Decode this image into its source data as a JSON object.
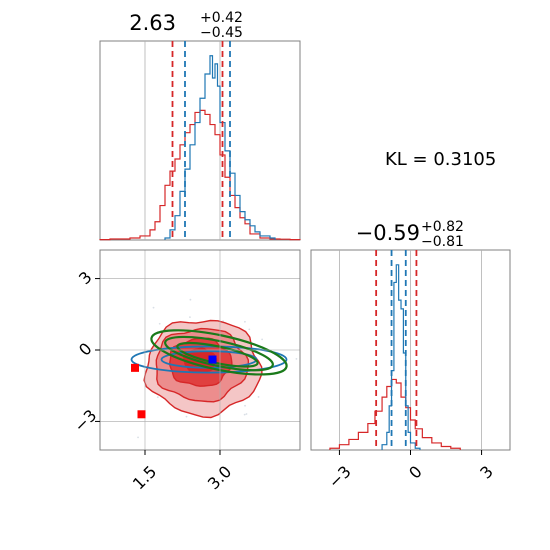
{
  "chart_data": [
    {
      "panel": "top-left",
      "type": "histogram",
      "title": {
        "main": "2.63",
        "sup": "+0.42",
        "sub": "−0.45"
      },
      "xlim": [
        0.6,
        4.6
      ],
      "gridlines_x": [
        1.5,
        3.0
      ],
      "x_ticks_shown": false,
      "series": [
        {
          "name": "",
          "color": "#d62728",
          "style": "step",
          "edges": [
            0.6,
            0.8,
            1.0,
            1.2,
            1.4,
            1.6,
            1.7,
            1.8,
            1.9,
            2.0,
            2.1,
            2.2,
            2.3,
            2.4,
            2.5,
            2.6,
            2.7,
            2.8,
            2.9,
            3.0,
            3.1,
            3.2,
            3.3,
            3.4,
            3.5,
            3.6,
            3.8,
            4.0,
            4.2,
            4.4,
            4.6
          ],
          "heights": [
            0.002,
            0.005,
            0.005,
            0.01,
            0.02,
            0.05,
            0.09,
            0.17,
            0.27,
            0.34,
            0.4,
            0.47,
            0.53,
            0.57,
            0.63,
            0.64,
            0.62,
            0.57,
            0.52,
            0.42,
            0.31,
            0.22,
            0.16,
            0.11,
            0.08,
            0.03,
            0.01,
            0.005,
            0.004,
            0.002
          ]
        },
        {
          "name": "",
          "color": "#1f77b4",
          "style": "step",
          "edges": [
            1.9,
            2.0,
            2.1,
            2.2,
            2.3,
            2.4,
            2.5,
            2.6,
            2.7,
            2.8,
            2.85,
            2.9,
            2.95,
            3.0,
            3.1,
            3.2,
            3.3,
            3.4,
            3.5,
            3.6,
            3.7,
            3.8,
            3.9,
            4.0,
            4.1
          ],
          "heights": [
            0.01,
            0.05,
            0.12,
            0.24,
            0.35,
            0.47,
            0.58,
            0.7,
            0.82,
            0.91,
            0.8,
            0.87,
            0.76,
            0.58,
            0.44,
            0.33,
            0.22,
            0.14,
            0.1,
            0.07,
            0.04,
            0.02,
            0.02,
            0.01
          ]
        }
      ],
      "quantile_lines": [
        {
          "color": "#d62728",
          "x": [
            2.05,
            3.05
          ]
        },
        {
          "color": "#1f77b4",
          "x": [
            2.3,
            3.2
          ]
        }
      ]
    },
    {
      "panel": "bottom-right",
      "type": "histogram",
      "title": {
        "main": "−0.59",
        "sup": "+0.82",
        "sub": "−0.81"
      },
      "xlim": [
        -4.2,
        4.2
      ],
      "x_tick_values": [
        -3,
        0,
        3
      ],
      "x_tick_labels": [
        "−3",
        "0",
        "3"
      ],
      "gridlines_x": [
        -3,
        0,
        3
      ],
      "series": [
        {
          "name": "",
          "color": "#d62728",
          "style": "step",
          "edges": [
            -3.4,
            -3.0,
            -2.6,
            -2.2,
            -1.8,
            -1.5,
            -1.2,
            -1.0,
            -0.8,
            -0.6,
            -0.4,
            -0.2,
            0.0,
            0.2,
            0.5,
            0.9,
            1.3,
            1.7,
            2.1
          ],
          "heights": [
            0.01,
            0.03,
            0.06,
            0.1,
            0.15,
            0.22,
            0.3,
            0.36,
            0.4,
            0.38,
            0.3,
            0.24,
            0.17,
            0.12,
            0.07,
            0.04,
            0.02,
            0.01
          ]
        },
        {
          "name": "",
          "color": "#1f77b4",
          "style": "step",
          "edges": [
            -1.2,
            -1.0,
            -0.9,
            -0.8,
            -0.7,
            -0.6,
            -0.5,
            -0.4,
            -0.3,
            -0.2,
            -0.1,
            0.0,
            0.2,
            0.4
          ],
          "heights": [
            0.03,
            0.1,
            0.25,
            0.45,
            0.95,
            1.05,
            0.85,
            0.8,
            0.55,
            0.25,
            0.1,
            0.04,
            0.01
          ]
        }
      ],
      "quantile_lines": [
        {
          "color": "#d62728",
          "x": [
            -1.45,
            0.25
          ]
        },
        {
          "color": "#1f77b4",
          "x": [
            -0.8,
            -0.2
          ]
        }
      ]
    },
    {
      "panel": "bottom-left",
      "type": "contour",
      "xlim": [
        0.6,
        4.6
      ],
      "ylim": [
        -4.2,
        4.2
      ],
      "x_tick_values": [
        1.5,
        3.0
      ],
      "x_tick_labels": [
        "1.5",
        "3.0"
      ],
      "y_tick_values": [
        -3,
        0,
        3
      ],
      "y_tick_labels": [
        "−3",
        "0",
        "3"
      ],
      "gridlines_x": [
        1.5,
        3.0
      ],
      "gridlines_y": [
        -3,
        0,
        3
      ],
      "red_filled_contours": [
        {
          "fill": "#f4c6c6",
          "stroke": "#d62728",
          "cx": 2.66,
          "cy": -0.72,
          "rx": 1.14,
          "ry": 2.0
        },
        {
          "fill": "#ec8d8d",
          "stroke": "#d62728",
          "cx": 2.62,
          "cy": -0.62,
          "rx": 0.92,
          "ry": 1.52
        },
        {
          "fill": "#e04040",
          "stroke": "#d62728",
          "cx": 2.6,
          "cy": -0.52,
          "rx": 0.62,
          "ry": 1.0
        },
        {
          "fill": "#d62728",
          "stroke": "#d62728",
          "cx": 2.6,
          "cy": -0.45,
          "rx": 0.32,
          "ry": 0.5
        }
      ],
      "blue_contours": [
        {
          "color": "#1f77b4",
          "cx": 2.78,
          "cy": -0.4,
          "rx": 1.55,
          "ry": 0.55
        },
        {
          "color": "#1f77b4",
          "cx": 2.78,
          "cy": -0.4,
          "rx": 0.95,
          "ry": 0.35
        }
      ],
      "green_contours": [
        {
          "color": "#1a7a1a",
          "cx": 2.98,
          "cy": -0.1,
          "rx": 1.38,
          "ry": 0.72,
          "rot": 12
        },
        {
          "color": "#1a7a1a",
          "cx": 2.98,
          "cy": -0.15,
          "rx": 1.1,
          "ry": 0.52,
          "rot": 12
        },
        {
          "color": "#1a7a1a",
          "cx": 2.95,
          "cy": -0.2,
          "rx": 0.82,
          "ry": 0.35,
          "rot": 12
        }
      ],
      "red_markers": [
        {
          "x": 1.3,
          "y": -0.75
        },
        {
          "x": 1.43,
          "y": -2.7
        }
      ],
      "blue_markers": [
        {
          "x": 2.85,
          "y": -0.4
        }
      ],
      "marker_colors": {
        "red": "#ff0000",
        "blue": "#0000ff"
      }
    }
  ],
  "annotation": {
    "kl_text": "KL = 0.3105"
  },
  "colors": {
    "grid": "#b0b0b0",
    "axes": "#808080",
    "background": "#ffffff"
  }
}
